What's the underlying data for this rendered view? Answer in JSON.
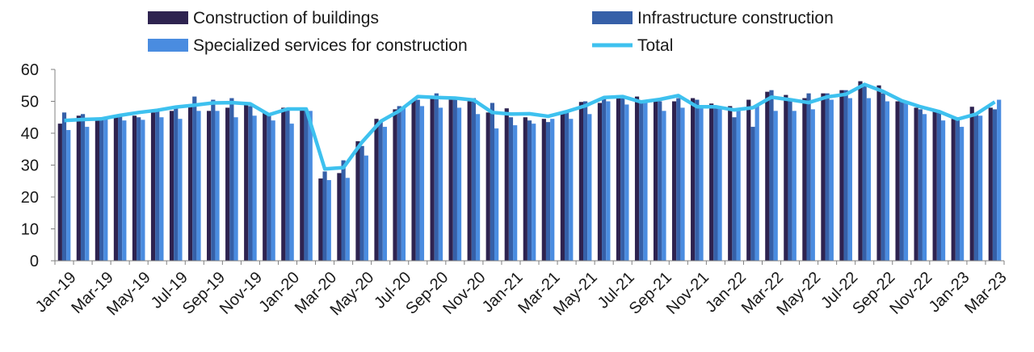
{
  "chart_data": {
    "type": "bar",
    "ylim": [
      0,
      60
    ],
    "yticks": [
      0,
      10,
      20,
      30,
      40,
      50,
      60
    ],
    "grid": false,
    "legend_position": "top",
    "categories": [
      "Jan-19",
      "Feb-19",
      "Mar-19",
      "Apr-19",
      "May-19",
      "Jun-19",
      "Jul-19",
      "Aug-19",
      "Sep-19",
      "Oct-19",
      "Nov-19",
      "Dec-19",
      "Jan-20",
      "Feb-20",
      "Mar-20",
      "Apr-20",
      "May-20",
      "Jun-20",
      "Jul-20",
      "Aug-20",
      "Sep-20",
      "Oct-20",
      "Nov-20",
      "Dec-20",
      "Jan-21",
      "Feb-21",
      "Mar-21",
      "Apr-21",
      "May-21",
      "Jun-21",
      "Jul-21",
      "Aug-21",
      "Sep-21",
      "Oct-21",
      "Nov-21",
      "Dec-21",
      "Jan-22",
      "Feb-22",
      "Mar-22",
      "Apr-22",
      "May-22",
      "Jun-22",
      "Jul-22",
      "Aug-22",
      "Sep-22",
      "Oct-22",
      "Nov-22",
      "Dec-22",
      "Jan-23",
      "Feb-23",
      "Mar-23"
    ],
    "x_tick_labels": [
      "Jan-19",
      "Mar-19",
      "May-19",
      "Jul-19",
      "Sep-19",
      "Nov-19",
      "Jan-20",
      "Mar-20",
      "May-20",
      "Jul-20",
      "Sep-20",
      "Nov-20",
      "Jan-21",
      "Mar-21",
      "May-21",
      "Jul-21",
      "Sep-21",
      "Nov-21",
      "Jan-22",
      "Mar-22",
      "May-22",
      "Jul-22",
      "Sep-22",
      "Nov-22",
      "Jan-23",
      "Mar-23"
    ],
    "series": [
      {
        "name": "Construction of buildings",
        "kind": "bar",
        "color": "#2e2350",
        "values": [
          43,
          45.5,
          44.5,
          45,
          45.5,
          46.5,
          47,
          48.5,
          47,
          48,
          49,
          46.5,
          48,
          47.5,
          25.8,
          27.5,
          37.5,
          44.5,
          47.5,
          50.5,
          51.5,
          50.5,
          50,
          46.5,
          47.8,
          45,
          44.5,
          46.5,
          49.8,
          49.5,
          51.5,
          51.5,
          50,
          50,
          51,
          49.3,
          48.5,
          50.5,
          53,
          52,
          51,
          52.5,
          53.5,
          56.3,
          55,
          50,
          48,
          47,
          44.5,
          48.3,
          48
        ]
      },
      {
        "name": "Infrastructure construction",
        "kind": "bar",
        "color": "#3660a8",
        "values": [
          46.5,
          46,
          45,
          45.5,
          45,
          47,
          48.5,
          51.5,
          50.5,
          51,
          48.5,
          46,
          47.5,
          47.5,
          28,
          31.5,
          36,
          43.5,
          48.5,
          50.5,
          52.5,
          51.5,
          51,
          49.5,
          45,
          44,
          43.5,
          46.5,
          50,
          51.5,
          51,
          50,
          50,
          51,
          50.5,
          48.5,
          45,
          42,
          53.5,
          51,
          52.5,
          52.5,
          53.5,
          55,
          52.5,
          50,
          47.5,
          46.5,
          45,
          46,
          47.5
        ]
      },
      {
        "name": "Specialized services for construction",
        "kind": "bar",
        "color": "#4a8ce0",
        "values": [
          41,
          42,
          44.5,
          44,
          44.2,
          45,
          44.5,
          47,
          47,
          45,
          45.5,
          44,
          43,
          47,
          25.3,
          26,
          33,
          42,
          48,
          48.5,
          48,
          48,
          46,
          41.5,
          42.5,
          43,
          44.5,
          44.5,
          46,
          50,
          49,
          49.5,
          47,
          48,
          48,
          48,
          47,
          48.5,
          47,
          47,
          47.5,
          50.5,
          51,
          51,
          50,
          49.5,
          46,
          44,
          42,
          45.5,
          50.5
        ]
      },
      {
        "name": "Total",
        "kind": "line",
        "color": "#3ec1ef",
        "values": [
          44,
          44.3,
          44.5,
          45.6,
          46.5,
          47.2,
          48.2,
          48.8,
          49.5,
          49.6,
          49.2,
          45.8,
          47.6,
          47.6,
          28.8,
          29.2,
          37.2,
          43.7,
          47,
          51.5,
          51.2,
          51,
          50.4,
          46.5,
          46,
          46.1,
          45.3,
          46.8,
          48.6,
          51.2,
          51.5,
          49.8,
          50.6,
          51.8,
          48.3,
          48.3,
          47.3,
          48,
          51.3,
          50.5,
          49.6,
          51.4,
          52.2,
          55.3,
          53.1,
          50.2,
          48.3,
          46.8,
          44.4,
          46,
          49.8
        ]
      }
    ]
  }
}
